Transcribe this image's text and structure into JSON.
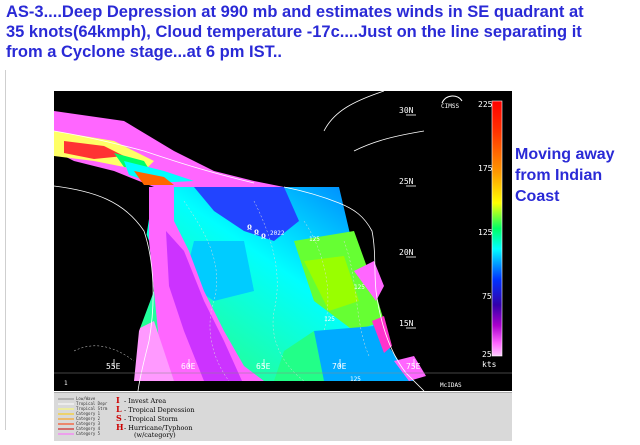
{
  "headline": "AS-3....Deep Depression at 990 mb and estimates winds in SE quadrant at 35 knots(64kmph), Cloud temperature -17c....Just on the line separating it from a Cyclone stage...at 6 pm IST..",
  "side_note": "Moving away from Indian Coast",
  "map": {
    "lat_labels": [
      "30N",
      "25N",
      "20N",
      "15N"
    ],
    "lon_labels": [
      "55E",
      "60E",
      "65E",
      "70E",
      "75E"
    ],
    "colorbar_ticks": [
      "225",
      "175",
      "125",
      "75",
      "25"
    ],
    "colorbar_unit": "kts",
    "storm_label": "2022",
    "contour_labels": [
      "125",
      "125",
      "125",
      "125"
    ],
    "logo_text": "CIMSS",
    "producer": "McIDAS",
    "frame_number": "1"
  },
  "legend": {
    "line_items": [
      "Low/Wave",
      "Tropical Depr",
      "Tropical Strm",
      "Category 1",
      "Category 2",
      "Category 3",
      "Category 4",
      "Category 5"
    ],
    "line_colors": [
      "#ffffff",
      "#ffffff",
      "#ffff66",
      "#ffcc00",
      "#ff9900",
      "#ff3300",
      "#cc0000",
      "#ff66ff"
    ],
    "symbols": [
      {
        "glyph": "I",
        "text": "- Invest Area",
        "color": "#cc0000"
      },
      {
        "glyph": "L",
        "text": "- Tropical Depression",
        "color": "#cc0000"
      },
      {
        "glyph": "S",
        "text": "- Tropical Storm",
        "color": "#cc0000"
      },
      {
        "glyph": "H",
        "text": "- Hurricane/Typhoon",
        "color": "#cc0000"
      }
    ],
    "note": "(w/category)"
  }
}
